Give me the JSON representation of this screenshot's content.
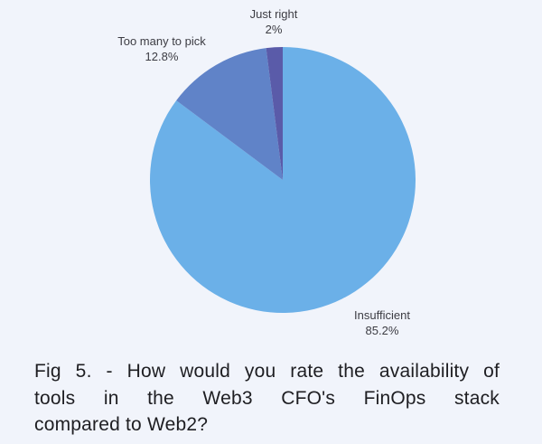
{
  "chart_data": {
    "type": "pie",
    "title": "Fig 5. - How would you rate the availability of tools in the Web3 CFO's FinOps stack compared to Web2?",
    "slices": [
      {
        "label": "Insufficient",
        "value": 85.2,
        "value_label": "85.2%",
        "color": "#6BB0E8"
      },
      {
        "label": "Too many to pick",
        "value": 12.8,
        "value_label": "12.8%",
        "color": "#6083C8"
      },
      {
        "label": "Just right",
        "value": 2,
        "value_label": "2%",
        "color": "#5A5BA9"
      }
    ],
    "start_angle_deg": 0,
    "direction": "clockwise",
    "legend_position": "none",
    "labels_position": "outside"
  },
  "caption": {
    "lines": [
      "Fig 5. - How would you rate the availability of",
      "tools in the Web3 CFO's FinOps stack",
      "compared to Web2?"
    ]
  },
  "colors": {
    "background": "#F1F4FB",
    "slice_insufficient": "#6BB0E8",
    "slice_too_many_to_pick": "#6083C8",
    "slice_just_right": "#5A5BA9",
    "slice_label_text": "#3C3C43",
    "caption_text": "#1E1E22"
  }
}
